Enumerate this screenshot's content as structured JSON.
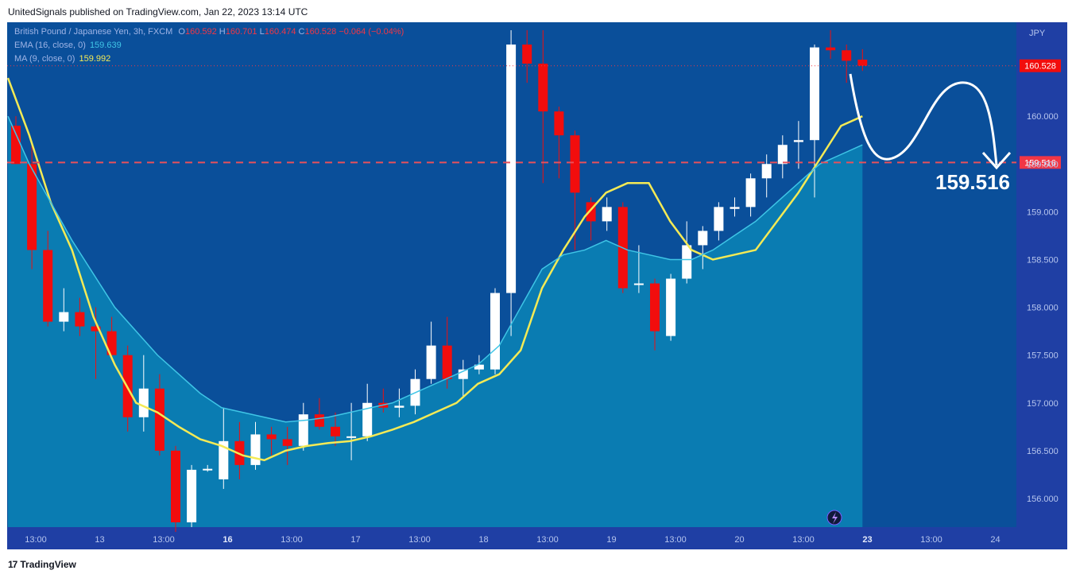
{
  "header": {
    "published": "UnitedSignals published on TradingView.com, Jan 22, 2023 13:14 UTC"
  },
  "legend": {
    "symbol": "British Pound / Japanese Yen, 3h, FXCM",
    "o_label": "O",
    "o": "160.592",
    "h_label": "H",
    "h": "160.701",
    "l_label": "L",
    "l": "160.474",
    "c_label": "C",
    "c": "160.528",
    "change": "−0.064 (−0.04%)",
    "ema_label": "EMA (16, close, 0)",
    "ema_value": "159.639",
    "ma_label": "MA (9, close, 0)",
    "ma_value": "159.992"
  },
  "colors": {
    "background": "#0a4f9a",
    "area": "#0a84b6",
    "up": "#ffffff",
    "down": "#f20d0d",
    "ma": "#f4ea55",
    "ema": "#3fc5e6",
    "dashed": "#e8505b"
  },
  "footer": {
    "brand": "TradingView"
  },
  "chart_data": {
    "type": "candlestick",
    "title": "British Pound / Japanese Yen, 3h, FXCM",
    "currency_label": "JPY",
    "y_ticks": [
      "156.000",
      "156.500",
      "157.000",
      "157.500",
      "158.000",
      "158.500",
      "159.000",
      "159.500",
      "160.000"
    ],
    "ylim": [
      155.7,
      160.9
    ],
    "x_ticks": [
      {
        "label": "13:00",
        "bold": false
      },
      {
        "label": "13",
        "bold": false
      },
      {
        "label": "13:00",
        "bold": false
      },
      {
        "label": "16",
        "bold": true
      },
      {
        "label": "13:00",
        "bold": false
      },
      {
        "label": "17",
        "bold": false
      },
      {
        "label": "13:00",
        "bold": false
      },
      {
        "label": "18",
        "bold": false
      },
      {
        "label": "13:00",
        "bold": false
      },
      {
        "label": "19",
        "bold": false
      },
      {
        "label": "13:00",
        "bold": false
      },
      {
        "label": "20",
        "bold": false
      },
      {
        "label": "13:00",
        "bold": false
      },
      {
        "label": "23",
        "bold": true
      },
      {
        "label": "13:00",
        "bold": false
      },
      {
        "label": "24",
        "bold": false
      }
    ],
    "last_price": "160.528",
    "level": 159.516,
    "level_label": "159.516",
    "annotation": "159.516",
    "candles": [
      [
        159.9,
        160.0,
        159.5,
        159.5
      ],
      [
        159.5,
        159.7,
        158.4,
        158.6
      ],
      [
        158.6,
        158.8,
        157.8,
        157.85
      ],
      [
        157.85,
        158.2,
        157.75,
        157.95
      ],
      [
        157.95,
        158.1,
        157.7,
        157.8
      ],
      [
        157.8,
        158.0,
        157.25,
        157.75
      ],
      [
        157.75,
        157.9,
        157.45,
        157.5
      ],
      [
        157.5,
        157.6,
        156.7,
        156.85
      ],
      [
        156.85,
        157.5,
        156.7,
        157.15
      ],
      [
        157.15,
        157.3,
        156.45,
        156.5
      ],
      [
        156.5,
        156.55,
        155.65,
        155.75
      ],
      [
        155.75,
        156.35,
        155.7,
        156.3
      ],
      [
        156.3,
        156.35,
        156.28,
        156.31
      ],
      [
        156.2,
        156.95,
        156.1,
        156.6
      ],
      [
        156.6,
        156.8,
        156.2,
        156.35
      ],
      [
        156.35,
        156.8,
        156.3,
        156.67
      ],
      [
        156.67,
        156.75,
        156.45,
        156.62
      ],
      [
        156.62,
        156.75,
        156.35,
        156.55
      ],
      [
        156.55,
        157.0,
        156.5,
        156.88
      ],
      [
        156.88,
        157.05,
        156.72,
        156.75
      ],
      [
        156.75,
        156.9,
        156.55,
        156.65
      ],
      [
        156.65,
        157.0,
        156.4,
        156.65
      ],
      [
        156.65,
        157.2,
        156.6,
        157.0
      ],
      [
        157.0,
        157.15,
        156.9,
        156.95
      ],
      [
        156.95,
        157.15,
        156.85,
        156.97
      ],
      [
        156.97,
        157.35,
        156.88,
        157.25
      ],
      [
        157.25,
        157.85,
        157.2,
        157.6
      ],
      [
        157.6,
        157.9,
        157.15,
        157.25
      ],
      [
        157.25,
        157.45,
        157.05,
        157.35
      ],
      [
        157.35,
        157.5,
        157.3,
        157.4
      ],
      [
        157.35,
        158.2,
        157.3,
        158.15
      ],
      [
        158.15,
        160.9,
        157.7,
        160.75
      ],
      [
        160.75,
        160.9,
        160.35,
        160.55
      ],
      [
        160.55,
        160.9,
        159.3,
        160.05
      ],
      [
        160.05,
        160.1,
        159.35,
        159.8
      ],
      [
        159.8,
        159.85,
        158.6,
        159.2
      ],
      [
        159.1,
        159.15,
        158.7,
        158.9
      ],
      [
        158.9,
        159.15,
        158.8,
        159.05
      ],
      [
        159.05,
        159.1,
        158.15,
        158.2
      ],
      [
        158.25,
        158.65,
        158.15,
        158.25
      ],
      [
        158.25,
        158.3,
        157.55,
        157.75
      ],
      [
        157.7,
        158.35,
        157.65,
        158.3
      ],
      [
        158.3,
        158.9,
        158.25,
        158.65
      ],
      [
        158.65,
        158.85,
        158.4,
        158.8
      ],
      [
        158.8,
        159.1,
        158.7,
        159.05
      ],
      [
        159.03,
        159.15,
        158.95,
        159.05
      ],
      [
        159.05,
        159.4,
        158.95,
        159.35
      ],
      [
        159.35,
        159.6,
        159.15,
        159.5
      ],
      [
        159.5,
        159.8,
        159.35,
        159.7
      ],
      [
        159.73,
        159.95,
        159.45,
        159.75
      ],
      [
        159.75,
        160.75,
        159.15,
        160.72
      ],
      [
        160.72,
        160.9,
        160.6,
        160.69
      ],
      [
        160.69,
        160.75,
        160.35,
        160.58
      ],
      [
        160.592,
        160.701,
        160.474,
        160.528
      ]
    ],
    "ma": [
      160.4,
      159.8,
      159.1,
      158.6,
      157.9,
      157.4,
      157.0,
      156.9,
      156.75,
      156.62,
      156.55,
      156.45,
      156.4,
      156.5,
      156.55,
      156.58,
      156.6,
      156.65,
      156.72,
      156.8,
      156.9,
      157.0,
      157.2,
      157.3,
      157.55,
      158.2,
      158.6,
      158.95,
      159.2,
      159.3,
      159.3,
      158.9,
      158.6,
      158.5,
      158.55,
      158.6,
      158.9,
      159.2,
      159.55,
      159.9,
      160.0
    ],
    "ema": [
      160.0,
      159.5,
      159.1,
      158.7,
      158.35,
      158.0,
      157.75,
      157.5,
      157.3,
      157.1,
      156.95,
      156.9,
      156.85,
      156.8,
      156.82,
      156.85,
      156.9,
      156.95,
      157.0,
      157.1,
      157.2,
      157.3,
      157.4,
      157.6,
      158.0,
      158.4,
      158.55,
      158.6,
      158.7,
      158.6,
      158.55,
      158.5,
      158.5,
      158.6,
      158.75,
      158.9,
      159.1,
      159.3,
      159.5,
      159.6,
      159.7
    ]
  }
}
